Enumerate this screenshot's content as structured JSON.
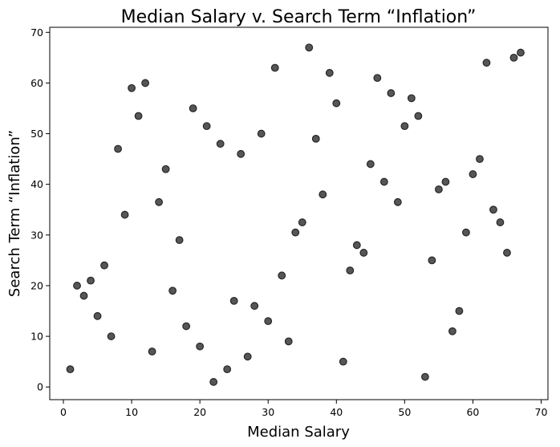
{
  "chart_data": {
    "type": "scatter",
    "title": "Median Salary v. Search Term “Inflation”",
    "xlabel": "Median Salary",
    "ylabel": "Search Term “Inflation”",
    "xlim": [
      -2,
      71
    ],
    "ylim": [
      -2.5,
      71
    ],
    "xticks": [
      0,
      10,
      20,
      30,
      40,
      50,
      60,
      70
    ],
    "yticks": [
      0,
      10,
      20,
      30,
      40,
      50,
      60,
      70
    ],
    "xtick_labels": [
      "0",
      "10",
      "20",
      "30",
      "40",
      "50",
      "60",
      "70"
    ],
    "ytick_labels": [
      "0",
      "10",
      "20",
      "30",
      "40",
      "50",
      "60",
      "70"
    ],
    "grid": false,
    "point_color": "#4d4d4d",
    "points": [
      {
        "x": 1,
        "y": 3.5
      },
      {
        "x": 2,
        "y": 20
      },
      {
        "x": 3,
        "y": 18
      },
      {
        "x": 4,
        "y": 21
      },
      {
        "x": 5,
        "y": 14
      },
      {
        "x": 6,
        "y": 24
      },
      {
        "x": 7,
        "y": 10
      },
      {
        "x": 8,
        "y": 47
      },
      {
        "x": 9,
        "y": 34
      },
      {
        "x": 10,
        "y": 59
      },
      {
        "x": 11,
        "y": 53.5
      },
      {
        "x": 12,
        "y": 60
      },
      {
        "x": 13,
        "y": 7
      },
      {
        "x": 14,
        "y": 36.5
      },
      {
        "x": 15,
        "y": 43
      },
      {
        "x": 16,
        "y": 19
      },
      {
        "x": 17,
        "y": 29
      },
      {
        "x": 18,
        "y": 12
      },
      {
        "x": 19,
        "y": 55
      },
      {
        "x": 20,
        "y": 8
      },
      {
        "x": 21,
        "y": 51.5
      },
      {
        "x": 22,
        "y": 1
      },
      {
        "x": 23,
        "y": 48
      },
      {
        "x": 24,
        "y": 3.5
      },
      {
        "x": 25,
        "y": 17
      },
      {
        "x": 26,
        "y": 46
      },
      {
        "x": 27,
        "y": 6
      },
      {
        "x": 28,
        "y": 16
      },
      {
        "x": 29,
        "y": 50
      },
      {
        "x": 30,
        "y": 13
      },
      {
        "x": 31,
        "y": 63
      },
      {
        "x": 32,
        "y": 22
      },
      {
        "x": 33,
        "y": 9
      },
      {
        "x": 34,
        "y": 30.5
      },
      {
        "x": 35,
        "y": 32.5
      },
      {
        "x": 36,
        "y": 67
      },
      {
        "x": 37,
        "y": 49
      },
      {
        "x": 38,
        "y": 38
      },
      {
        "x": 39,
        "y": 62
      },
      {
        "x": 40,
        "y": 56
      },
      {
        "x": 41,
        "y": 5
      },
      {
        "x": 42,
        "y": 23
      },
      {
        "x": 43,
        "y": 28
      },
      {
        "x": 44,
        "y": 26.5
      },
      {
        "x": 45,
        "y": 44
      },
      {
        "x": 46,
        "y": 61
      },
      {
        "x": 47,
        "y": 40.5
      },
      {
        "x": 48,
        "y": 58
      },
      {
        "x": 49,
        "y": 36.5
      },
      {
        "x": 50,
        "y": 51.5
      },
      {
        "x": 51,
        "y": 57
      },
      {
        "x": 52,
        "y": 53.5
      },
      {
        "x": 53,
        "y": 2
      },
      {
        "x": 54,
        "y": 25
      },
      {
        "x": 55,
        "y": 39
      },
      {
        "x": 56,
        "y": 40.5
      },
      {
        "x": 57,
        "y": 11
      },
      {
        "x": 58,
        "y": 15
      },
      {
        "x": 59,
        "y": 30.5
      },
      {
        "x": 60,
        "y": 42
      },
      {
        "x": 61,
        "y": 45
      },
      {
        "x": 62,
        "y": 64
      },
      {
        "x": 63,
        "y": 35
      },
      {
        "x": 64,
        "y": 32.5
      },
      {
        "x": 65,
        "y": 26.5
      },
      {
        "x": 66,
        "y": 65
      },
      {
        "x": 67,
        "y": 66
      }
    ]
  }
}
